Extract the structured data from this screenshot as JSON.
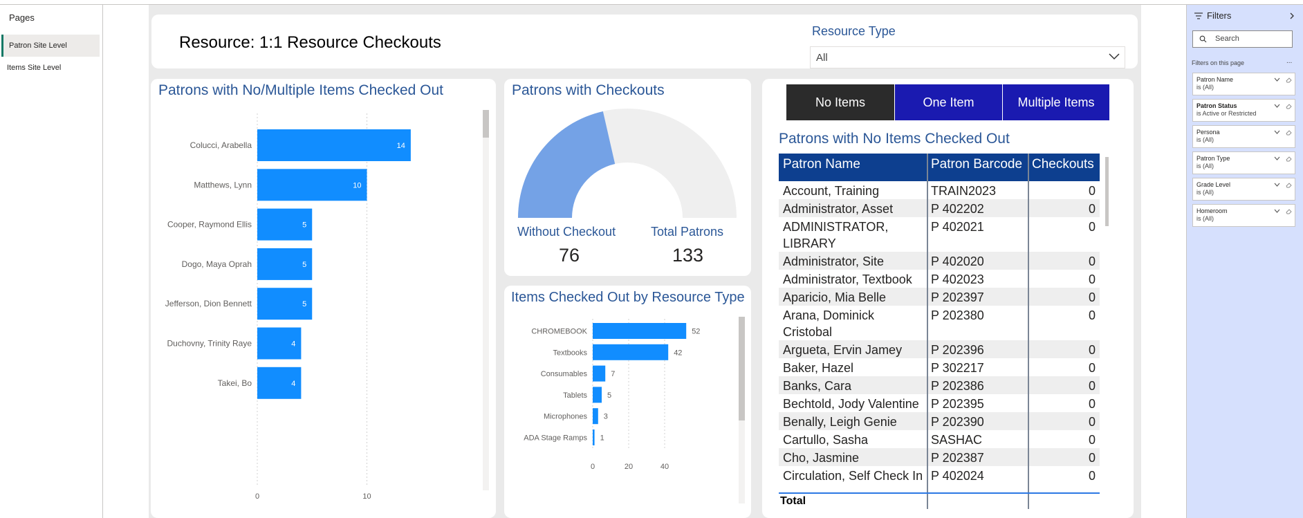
{
  "pages_pane": {
    "title": "Pages",
    "items": [
      {
        "label": "Patron Site Level",
        "active": true
      },
      {
        "label": "Items Site Level",
        "active": false
      }
    ]
  },
  "header": {
    "title": "Resource: 1:1 Resource Checkouts",
    "slicer_label": "Resource Type",
    "slicer_value": "All"
  },
  "patrons_chart": {
    "title": "Patrons with No/Multiple Items Checked Out",
    "chart_data": {
      "type": "bar",
      "orientation": "horizontal",
      "categories": [
        "Colucci, Arabella",
        "Matthews, Lynn",
        "Cooper, Raymond Ellis",
        "Dogo, Maya Oprah",
        "Jefferson, Dion Bennett",
        "Duchovny, Trinity Raye",
        "Takei, Bo"
      ],
      "values": [
        14,
        10,
        5,
        5,
        5,
        4,
        4
      ],
      "xticks": [
        "0",
        "10"
      ],
      "xlim": [
        0,
        15
      ],
      "grid": true,
      "color": "#118dff"
    }
  },
  "gauge": {
    "title": "Patrons with Checkouts",
    "without_label": "Without Checkout",
    "without_value": "76",
    "total_label": "Total Patrons",
    "total_value": "133",
    "value": 57,
    "max": 133,
    "fill_color": "#74a2e6",
    "track_color": "#efefef"
  },
  "resource_chart": {
    "title": "Items Checked Out by Resource Type",
    "chart_data": {
      "type": "bar",
      "orientation": "horizontal",
      "categories": [
        "CHROMEBOOK",
        "Textbooks",
        "Consumables",
        "Tablets",
        "Microphones",
        "ADA Stage Ramps"
      ],
      "values": [
        52,
        42,
        7,
        5,
        3,
        1
      ],
      "xticks": [
        "0",
        "20",
        "40"
      ],
      "xlim": [
        0,
        60
      ],
      "grid": true,
      "color": "#118dff"
    }
  },
  "toggle": {
    "buttons": [
      {
        "label": "No Items",
        "active": true
      },
      {
        "label": "One Item",
        "active": false
      },
      {
        "label": "Multiple Items",
        "active": false
      }
    ]
  },
  "table": {
    "title": "Patrons with No Items Checked Out",
    "columns": [
      "Patron Name",
      "Patron Barcode",
      "Checkouts"
    ],
    "rows": [
      {
        "name": [
          "Account, Training"
        ],
        "barcode": "TRAIN2023",
        "checkouts": "0"
      },
      {
        "name": [
          "Administrator, Asset"
        ],
        "barcode": "P 402202",
        "checkouts": "0"
      },
      {
        "name": [
          "ADMINISTRATOR,",
          "LIBRARY"
        ],
        "barcode": "P 402021",
        "checkouts": "0"
      },
      {
        "name": [
          "Administrator, Site"
        ],
        "barcode": "P 402020",
        "checkouts": "0"
      },
      {
        "name": [
          "Administrator, Textbook"
        ],
        "barcode": "P 402023",
        "checkouts": "0"
      },
      {
        "name": [
          "Aparicio, Mia Belle"
        ],
        "barcode": "P 202397",
        "checkouts": "0"
      },
      {
        "name": [
          "Arana, Dominick",
          "Cristobal"
        ],
        "barcode": "P 202380",
        "checkouts": "0"
      },
      {
        "name": [
          "Argueta, Ervin Jamey"
        ],
        "barcode": "P 202396",
        "checkouts": "0"
      },
      {
        "name": [
          "Baker, Hazel"
        ],
        "barcode": "P 302217",
        "checkouts": "0"
      },
      {
        "name": [
          "Banks, Cara"
        ],
        "barcode": "P 202386",
        "checkouts": "0"
      },
      {
        "name": [
          "Bechtold, Jody Valentine"
        ],
        "barcode": "P 202395",
        "checkouts": "0"
      },
      {
        "name": [
          "Benally, Leigh Genie"
        ],
        "barcode": "P 202390",
        "checkouts": "0"
      },
      {
        "name": [
          "Cartullo, Sasha"
        ],
        "barcode": "SASHAC",
        "checkouts": "0"
      },
      {
        "name": [
          "Cho, Jasmine"
        ],
        "barcode": "P 202387",
        "checkouts": "0"
      },
      {
        "name": [
          "Circulation, Self Check In"
        ],
        "barcode": "P 402024",
        "checkouts": "0"
      }
    ],
    "total_label": "Total"
  },
  "filters_pane": {
    "title": "Filters",
    "search_placeholder": "Search",
    "section_label": "Filters on this page",
    "more_label": "...",
    "cards": [
      {
        "name": "Patron Name",
        "value": "is (All)",
        "bold": false
      },
      {
        "name": "Patron Status",
        "value": "is Active or Restricted",
        "bold": true
      },
      {
        "name": "Persona",
        "value": "is (All)",
        "bold": false
      },
      {
        "name": "Patron Type",
        "value": "is (All)",
        "bold": false
      },
      {
        "name": "Grade Level",
        "value": "is (All)",
        "bold": false
      },
      {
        "name": "Homeroom",
        "value": "is (All)",
        "bold": false
      }
    ]
  }
}
